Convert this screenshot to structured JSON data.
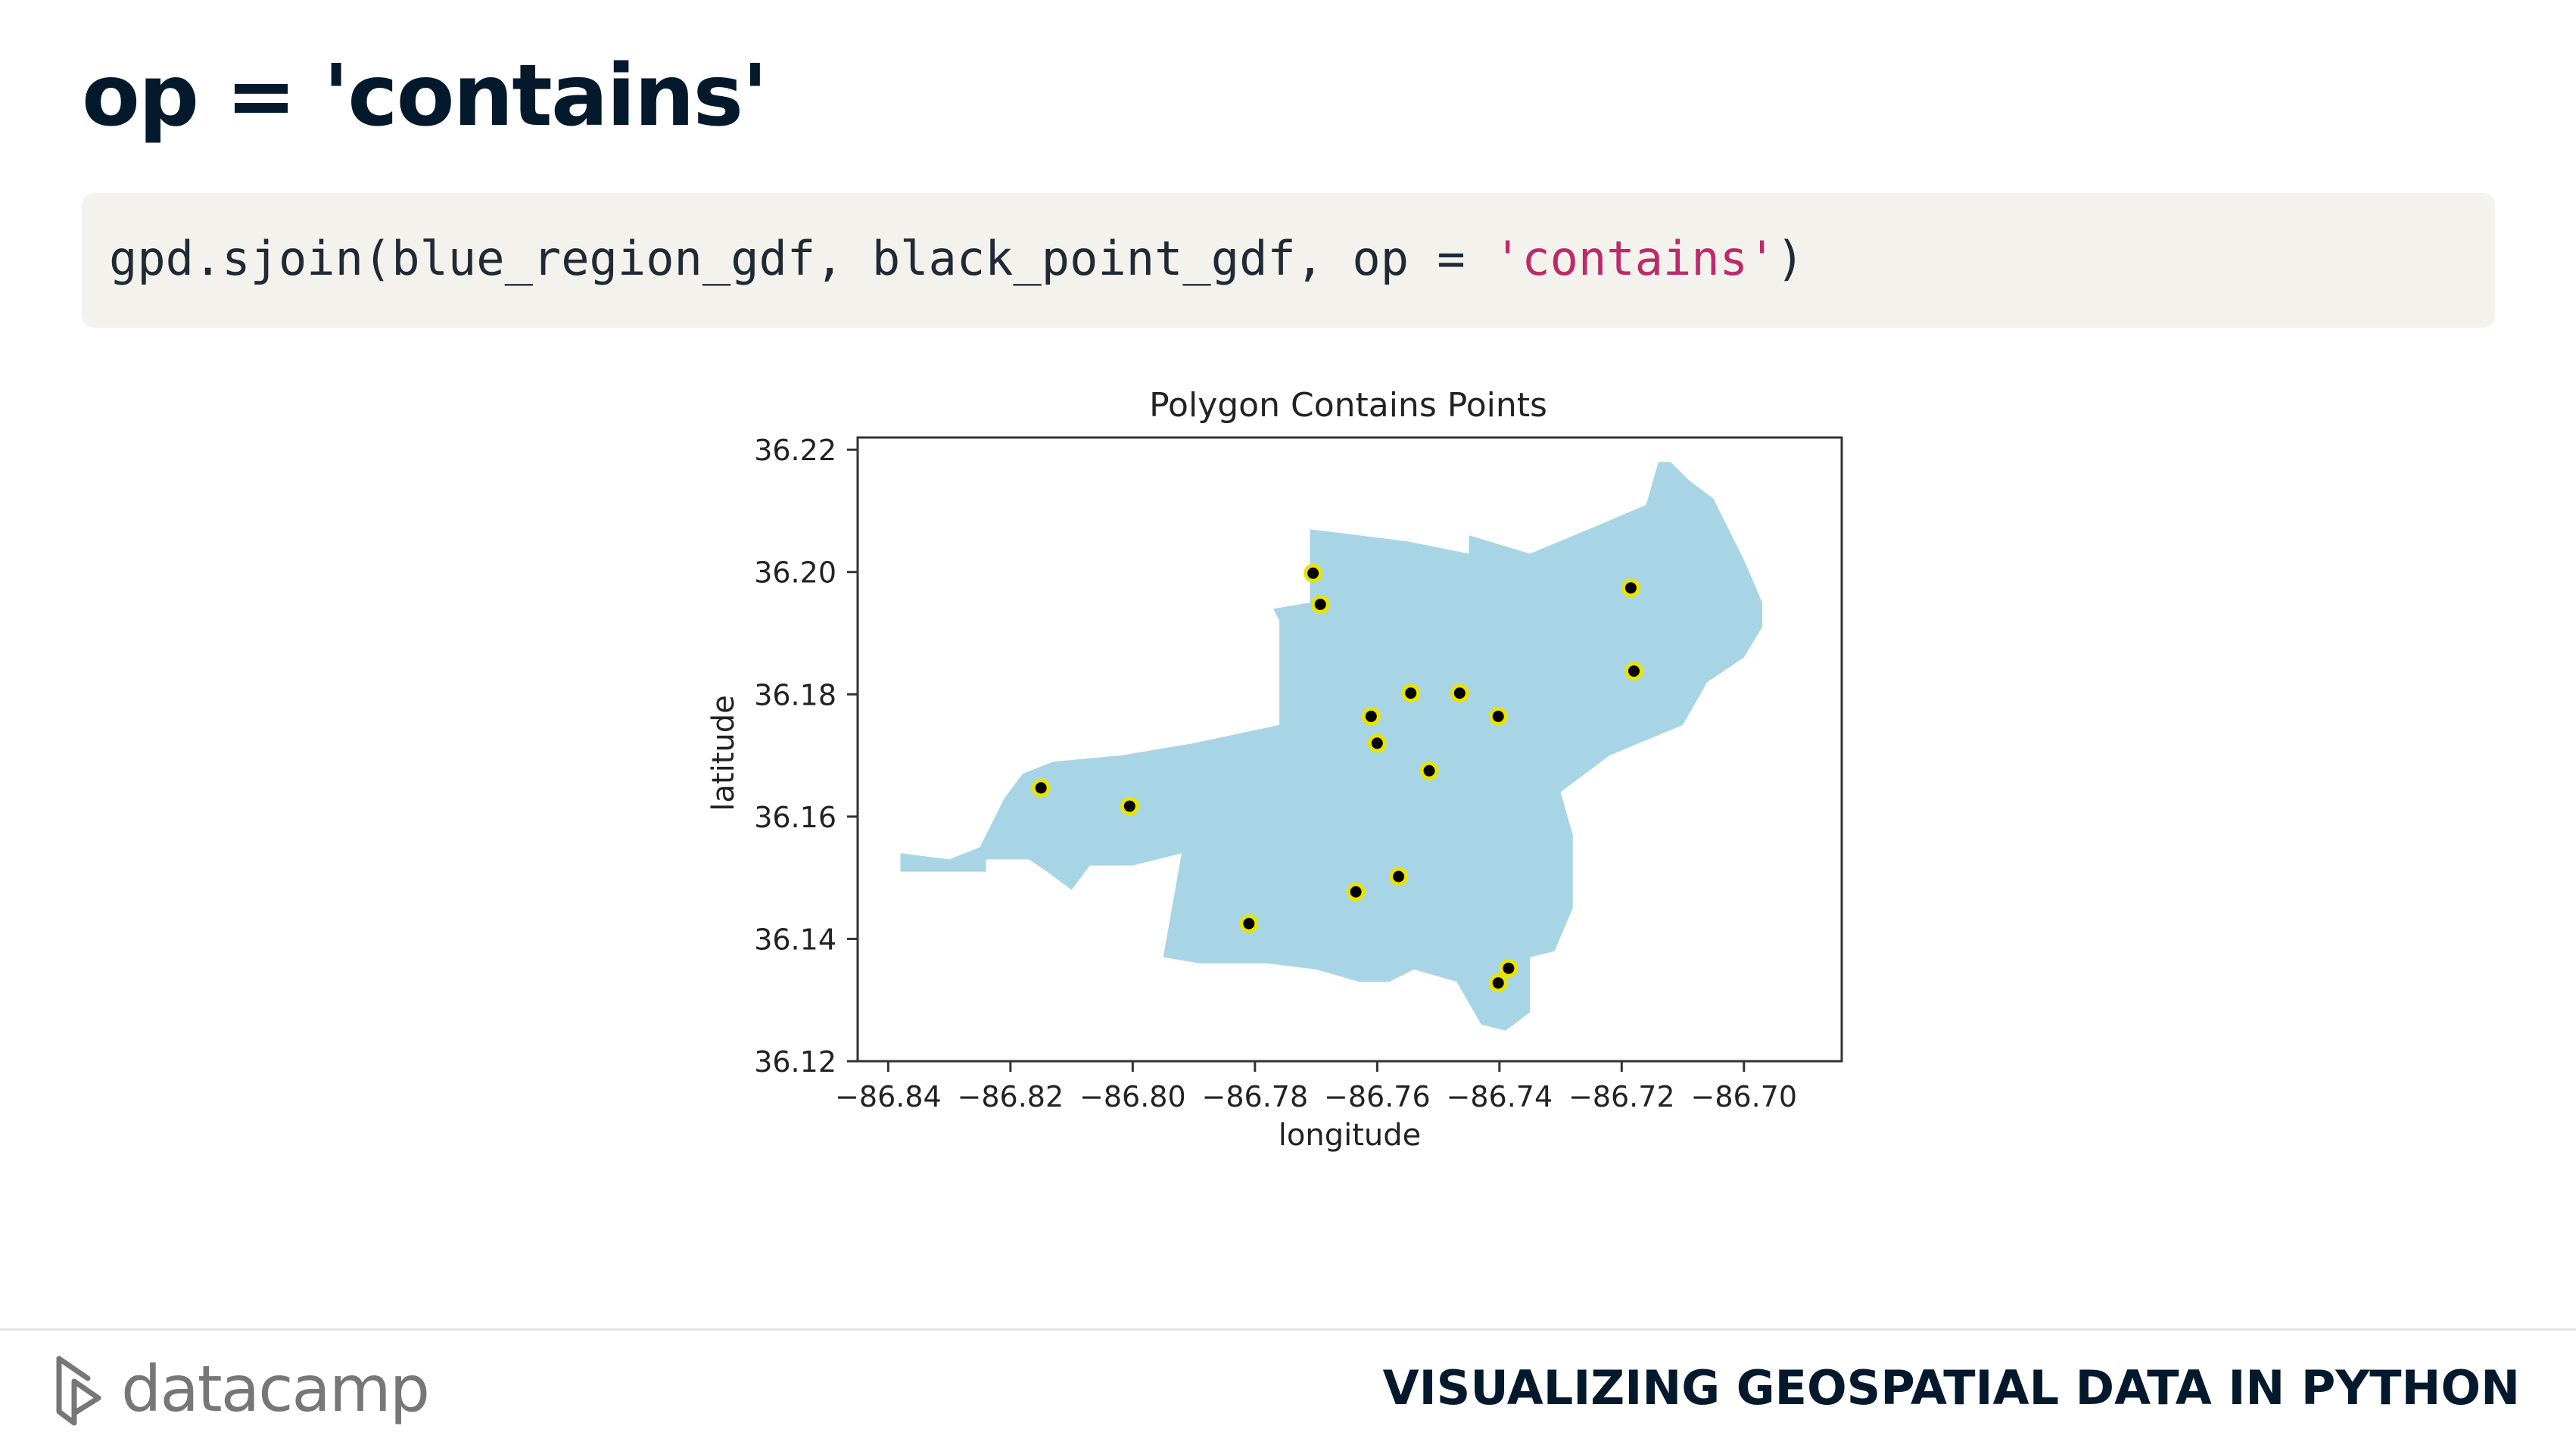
{
  "slide": {
    "title": "op = 'contains'",
    "course_title": "VISUALIZING GEOSPATIAL DATA IN PYTHON",
    "brand_name": "datacamp"
  },
  "code": {
    "prefix": "gpd.sjoin(blue_region_gdf, black_point_gdf, op = ",
    "string_literal": "'contains'",
    "suffix": ")"
  },
  "colors": {
    "polygon_fill": "#a8d5e5",
    "point_fill": "#000000",
    "point_edge": "#e8e400",
    "string_literal": "#be2a69",
    "title_text": "#05192d"
  },
  "icons": {
    "brand_logo": "datacamp-logo-icon"
  },
  "chart_data": {
    "type": "scatter",
    "title": "Polygon Contains Points",
    "xlabel": "longitude",
    "ylabel": "latitude",
    "xlim": [
      -86.845,
      -86.684
    ],
    "ylim": [
      36.12,
      36.222
    ],
    "xticks": [
      -86.84,
      -86.82,
      -86.8,
      -86.78,
      -86.76,
      -86.74,
      -86.72,
      -86.7
    ],
    "xtick_labels": [
      "−86.84",
      "−86.82",
      "−86.80",
      "−86.78",
      "−86.76",
      "−86.74",
      "−86.72",
      "−86.70"
    ],
    "yticks": [
      36.12,
      36.14,
      36.16,
      36.18,
      36.2,
      36.22
    ],
    "ytick_labels": [
      "36.12",
      "36.14",
      "36.16",
      "36.18",
      "36.20",
      "36.22"
    ],
    "grid": false,
    "polygon": [
      [
        -86.838,
        36.154
      ],
      [
        -86.83,
        36.153
      ],
      [
        -86.825,
        36.155
      ],
      [
        -86.821,
        36.163
      ],
      [
        -86.818,
        36.167
      ],
      [
        -86.813,
        36.169
      ],
      [
        -86.802,
        36.17
      ],
      [
        -86.79,
        36.172
      ],
      [
        -86.776,
        36.175
      ],
      [
        -86.776,
        36.192
      ],
      [
        -86.777,
        36.194
      ],
      [
        -86.771,
        36.195
      ],
      [
        -86.771,
        36.207
      ],
      [
        -86.755,
        36.205
      ],
      [
        -86.745,
        36.203
      ],
      [
        -86.745,
        36.206
      ],
      [
        -86.735,
        36.203
      ],
      [
        -86.723,
        36.208
      ],
      [
        -86.716,
        36.211
      ],
      [
        -86.714,
        36.218
      ],
      [
        -86.712,
        36.218
      ],
      [
        -86.709,
        36.215
      ],
      [
        -86.705,
        36.212
      ],
      [
        -86.7,
        36.202
      ],
      [
        -86.697,
        36.195
      ],
      [
        -86.697,
        36.191
      ],
      [
        -86.7,
        36.186
      ],
      [
        -86.706,
        36.182
      ],
      [
        -86.71,
        36.175
      ],
      [
        -86.722,
        36.17
      ],
      [
        -86.73,
        36.164
      ],
      [
        -86.728,
        36.157
      ],
      [
        -86.728,
        36.145
      ],
      [
        -86.731,
        36.138
      ],
      [
        -86.735,
        36.137
      ],
      [
        -86.735,
        36.128
      ],
      [
        -86.739,
        36.125
      ],
      [
        -86.743,
        36.126
      ],
      [
        -86.747,
        36.133
      ],
      [
        -86.754,
        36.135
      ],
      [
        -86.758,
        36.133
      ],
      [
        -86.763,
        36.133
      ],
      [
        -86.77,
        36.135
      ],
      [
        -86.778,
        36.136
      ],
      [
        -86.789,
        36.136
      ],
      [
        -86.795,
        36.137
      ],
      [
        -86.792,
        36.154
      ],
      [
        -86.8,
        36.152
      ],
      [
        -86.807,
        36.152
      ],
      [
        -86.81,
        36.148
      ],
      [
        -86.814,
        36.151
      ],
      [
        -86.817,
        36.153
      ],
      [
        -86.824,
        36.153
      ],
      [
        -86.824,
        36.151
      ],
      [
        -86.831,
        36.151
      ],
      [
        -86.838,
        36.151
      ]
    ],
    "points": {
      "x": [
        -86.7705,
        -86.7693,
        -86.7185,
        -86.718,
        -86.7545,
        -86.7465,
        -86.7402,
        -86.761,
        -86.76,
        -86.7515,
        -86.815,
        -86.8005,
        -86.781,
        -86.7635,
        -86.7565,
        -86.7402,
        -86.7385
      ],
      "y": [
        36.1998,
        36.1947,
        36.1974,
        36.1838,
        36.1802,
        36.1802,
        36.1764,
        36.1764,
        36.172,
        36.1675,
        36.1647,
        36.1617,
        36.1425,
        36.1477,
        36.1502,
        36.1328,
        36.1352
      ]
    }
  }
}
